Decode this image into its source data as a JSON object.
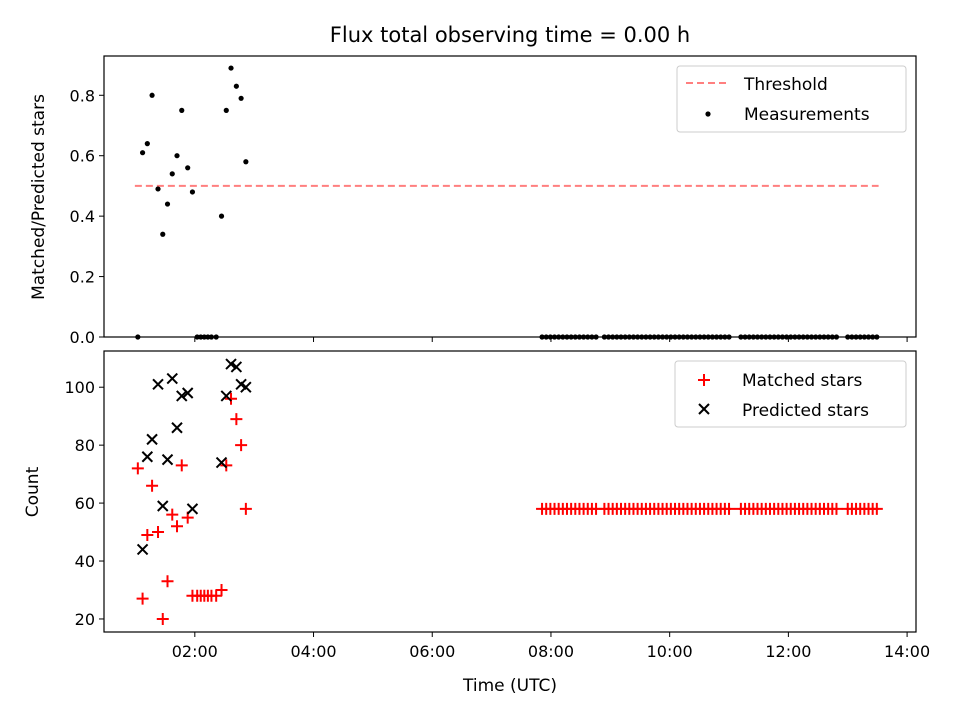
{
  "chart_data": {
    "title": "Flux total observing time = 0.00 h",
    "xlabel": "Time (UTC)",
    "x_unit": "hours UTC",
    "xlim": [
      0.47,
      14.15
    ],
    "x_ticks": [
      2,
      4,
      6,
      8,
      10,
      12,
      14
    ],
    "x_tick_labels": [
      "02:00",
      "04:00",
      "06:00",
      "08:00",
      "10:00",
      "12:00",
      "14:00"
    ],
    "panels": [
      {
        "type": "scatter",
        "ylabel": "Matched/Predicted stars",
        "ylim": [
          0.0,
          0.93
        ],
        "y_ticks": [
          0.0,
          0.2,
          0.4,
          0.6,
          0.8
        ],
        "y_tick_labels": [
          "0.0",
          "0.2",
          "0.4",
          "0.6",
          "0.8"
        ],
        "legend_position": "top-right",
        "series": [
          {
            "name": "Threshold",
            "type": "line",
            "style": "dashed",
            "color": "#ff7f7f",
            "x": [
              0.99,
              13.52
            ],
            "y": [
              0.5,
              0.5
            ]
          },
          {
            "name": "Measurements",
            "type": "scatter",
            "marker": "dot",
            "color": "#000000",
            "x": [
              1.04,
              1.12,
              1.2,
              1.28,
              1.38,
              1.46,
              1.54,
              1.62,
              1.7,
              1.78,
              1.88,
              1.96,
              2.04,
              2.1,
              2.16,
              2.22,
              2.28,
              2.36,
              2.45,
              2.53,
              2.61,
              2.7,
              2.78,
              2.86,
              7.85,
              7.92,
              7.99,
              8.06,
              8.13,
              8.2,
              8.27,
              8.34,
              8.41,
              8.48,
              8.55,
              8.62,
              8.69,
              8.76,
              8.9,
              8.97,
              9.04,
              9.11,
              9.18,
              9.25,
              9.32,
              9.39,
              9.46,
              9.53,
              9.6,
              9.67,
              9.74,
              9.81,
              9.88,
              9.95,
              10.02,
              10.09,
              10.16,
              10.23,
              10.3,
              10.37,
              10.44,
              10.51,
              10.58,
              10.65,
              10.72,
              10.79,
              10.86,
              10.93,
              11.0,
              11.2,
              11.27,
              11.34,
              11.41,
              11.48,
              11.55,
              11.62,
              11.69,
              11.76,
              11.83,
              11.9,
              11.97,
              12.04,
              12.11,
              12.18,
              12.25,
              12.32,
              12.39,
              12.46,
              12.53,
              12.6,
              12.67,
              12.74,
              12.81,
              13.0,
              13.07,
              13.14,
              13.21,
              13.28,
              13.35,
              13.42,
              13.49
            ],
            "y": [
              0.0,
              0.61,
              0.64,
              0.8,
              0.49,
              0.34,
              0.44,
              0.54,
              0.6,
              0.75,
              0.56,
              0.48,
              0.0,
              0.0,
              0.0,
              0.0,
              0.0,
              0.0,
              0.4,
              0.75,
              0.89,
              0.83,
              0.79,
              0.58,
              0,
              0,
              0,
              0,
              0,
              0,
              0,
              0,
              0,
              0,
              0,
              0,
              0,
              0,
              0,
              0,
              0,
              0,
              0,
              0,
              0,
              0,
              0,
              0,
              0,
              0,
              0,
              0,
              0,
              0,
              0,
              0,
              0,
              0,
              0,
              0,
              0,
              0,
              0,
              0,
              0,
              0,
              0,
              0,
              0,
              0,
              0,
              0,
              0,
              0,
              0,
              0,
              0,
              0,
              0,
              0,
              0,
              0,
              0,
              0,
              0,
              0,
              0,
              0,
              0,
              0,
              0,
              0,
              0,
              0,
              0,
              0,
              0,
              0,
              0,
              0,
              0
            ]
          }
        ]
      },
      {
        "type": "scatter",
        "ylabel": "Count",
        "ylim": [
          15.5,
          112.5
        ],
        "y_ticks": [
          20,
          40,
          60,
          80,
          100
        ],
        "y_tick_labels": [
          "20",
          "40",
          "60",
          "80",
          "100"
        ],
        "legend_position": "top-right",
        "series": [
          {
            "name": "Matched stars",
            "marker": "plus",
            "color": "#ff0000",
            "x": [
              1.04,
              1.12,
              1.2,
              1.28,
              1.38,
              1.46,
              1.54,
              1.62,
              1.7,
              1.78,
              1.88,
              1.96,
              2.04,
              2.1,
              2.16,
              2.22,
              2.28,
              2.36,
              2.45,
              2.53,
              2.61,
              2.7,
              2.78,
              2.86,
              7.85,
              7.92,
              7.99,
              8.06,
              8.13,
              8.2,
              8.27,
              8.34,
              8.41,
              8.48,
              8.55,
              8.62,
              8.69,
              8.76,
              8.9,
              8.97,
              9.04,
              9.11,
              9.18,
              9.25,
              9.32,
              9.39,
              9.46,
              9.53,
              9.6,
              9.67,
              9.74,
              9.81,
              9.88,
              9.95,
              10.02,
              10.09,
              10.16,
              10.23,
              10.3,
              10.37,
              10.44,
              10.51,
              10.58,
              10.65,
              10.72,
              10.79,
              10.86,
              10.93,
              11.0,
              11.2,
              11.27,
              11.34,
              11.41,
              11.48,
              11.55,
              11.62,
              11.69,
              11.76,
              11.83,
              11.9,
              11.97,
              12.04,
              12.11,
              12.18,
              12.25,
              12.32,
              12.39,
              12.46,
              12.53,
              12.6,
              12.67,
              12.74,
              12.81,
              13.0,
              13.07,
              13.14,
              13.21,
              13.28,
              13.35,
              13.42,
              13.49
            ],
            "y": [
              72,
              27,
              49,
              66,
              50,
              20,
              33,
              56,
              52,
              73,
              55,
              28,
              28,
              28,
              28,
              28,
              28,
              28,
              30,
              73,
              96,
              89,
              80,
              58,
              58,
              58,
              58,
              58,
              58,
              58,
              58,
              58,
              58,
              58,
              58,
              58,
              58,
              58,
              58,
              58,
              58,
              58,
              58,
              58,
              58,
              58,
              58,
              58,
              58,
              58,
              58,
              58,
              58,
              58,
              58,
              58,
              58,
              58,
              58,
              58,
              58,
              58,
              58,
              58,
              58,
              58,
              58,
              58,
              58,
              58,
              58,
              58,
              58,
              58,
              58,
              58,
              58,
              58,
              58,
              58,
              58,
              58,
              58,
              58,
              58,
              58,
              58,
              58,
              58,
              58,
              58,
              58,
              58,
              58,
              58,
              58,
              58,
              58,
              58,
              58,
              58
            ]
          },
          {
            "name": "Predicted stars",
            "marker": "x",
            "color": "#000000",
            "x": [
              1.12,
              1.2,
              1.28,
              1.38,
              1.46,
              1.54,
              1.62,
              1.7,
              1.78,
              1.88,
              1.96,
              2.45,
              2.53,
              2.61,
              2.7,
              2.78,
              2.86
            ],
            "y": [
              44,
              76,
              82,
              101,
              59,
              75,
              103,
              86,
              97,
              98,
              58,
              74,
              97,
              108,
              107,
              101,
              100
            ]
          }
        ]
      }
    ]
  }
}
